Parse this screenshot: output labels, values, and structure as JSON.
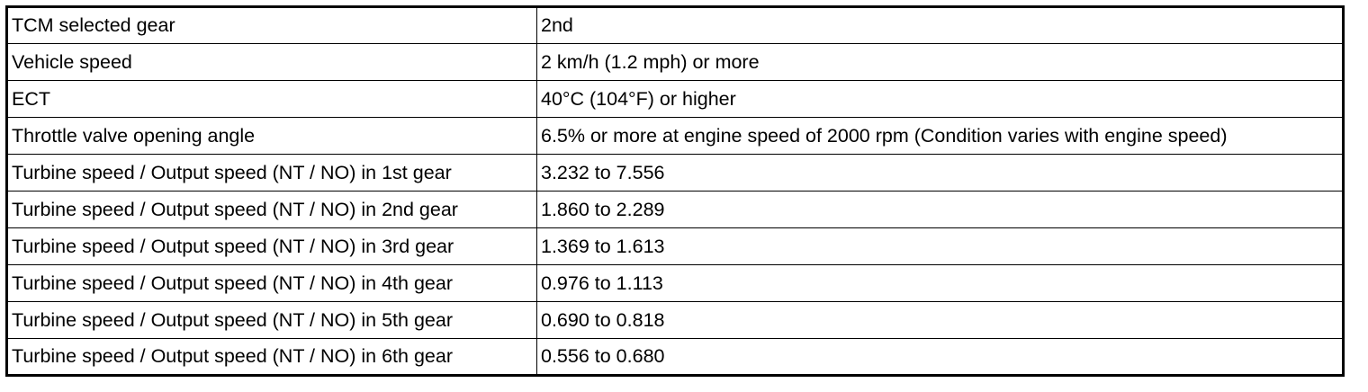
{
  "table": {
    "rows": [
      [
        "TCM selected gear",
        "2nd"
      ],
      [
        "Vehicle speed",
        "2 km/h (1.2 mph) or more"
      ],
      [
        "ECT",
        "40°C (104°F) or higher"
      ],
      [
        "Throttle valve opening angle",
        "6.5% or more at engine speed of 2000 rpm (Condition varies with engine speed)"
      ],
      [
        "Turbine speed / Output speed (NT / NO) in 1st gear",
        "3.232 to 7.556"
      ],
      [
        "Turbine speed / Output speed (NT / NO) in 2nd gear",
        "1.860 to 2.289"
      ],
      [
        "Turbine speed / Output speed (NT / NO) in 3rd gear",
        "1.369 to 1.613"
      ],
      [
        "Turbine speed / Output speed (NT / NO) in 4th gear",
        "0.976 to 1.113"
      ],
      [
        "Turbine speed / Output speed (NT / NO) in 5th gear",
        "0.690 to 0.818"
      ],
      [
        "Turbine speed / Output speed (NT / NO) in 6th gear",
        "0.556 to 0.680"
      ]
    ]
  }
}
